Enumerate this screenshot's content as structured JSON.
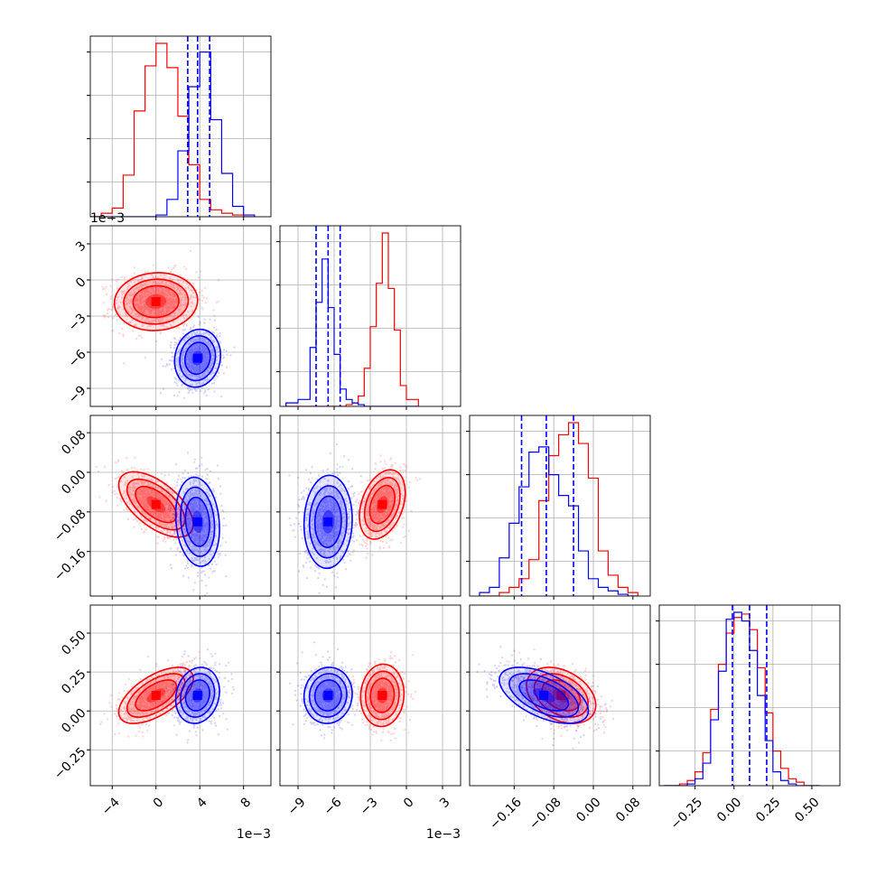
{
  "chart_data": {
    "type": "corner",
    "offset_text": {
      "x0": "1e−3",
      "x1": "1e−3",
      "y1": "1e−3"
    },
    "colors": {
      "red": "#ff0000",
      "blue": "#0000ff",
      "grid": "#b0b0b0"
    },
    "params": [
      {
        "range": [
          -6.0,
          10.5
        ],
        "ticks": [
          -4,
          0,
          4,
          8
        ],
        "tick_labels": [
          "−4",
          "0",
          "4",
          "8"
        ],
        "scale_note": "1e-3"
      },
      {
        "range": [
          -10.5,
          4.5
        ],
        "ticks": [
          -9,
          -6,
          -3,
          0,
          3
        ],
        "tick_labels": [
          "−9",
          "−6",
          "−3",
          "0",
          "3"
        ],
        "scale_note": "1e-3"
      },
      {
        "range": [
          -0.25,
          0.115
        ],
        "ticks": [
          -0.16,
          -0.08,
          0.0,
          0.08
        ],
        "tick_labels": [
          "−0.16",
          "−0.08",
          "0.00",
          "0.08"
        ]
      },
      {
        "range": [
          -0.48,
          0.68
        ],
        "ticks": [
          -0.25,
          0.0,
          0.25,
          0.5
        ],
        "tick_labels": [
          "−0.25",
          "0.00",
          "0.25",
          "0.50"
        ]
      }
    ],
    "quantiles_blue": [
      [
        2.9,
        3.8,
        4.9
      ],
      [
        -7.5,
        -6.5,
        -5.5
      ],
      [
        -0.145,
        -0.095,
        -0.04
      ],
      [
        -0.01,
        0.1,
        0.21
      ]
    ],
    "histograms": [
      {
        "param": 0,
        "bins": [
          -6.0,
          -5.0,
          -4.0,
          -3.0,
          -2.0,
          -1.0,
          0.0,
          1.0,
          2.0,
          3.0,
          4.0,
          5.0,
          6.0,
          7.0,
          8.0,
          9.0
        ],
        "red": [
          0.0,
          0.02,
          0.05,
          0.24,
          0.61,
          0.87,
          1.0,
          0.86,
          0.58,
          0.3,
          0.1,
          0.04,
          0.02,
          0.01,
          0.0
        ],
        "blue": [
          0.0,
          0.0,
          0.0,
          0.0,
          0.0,
          0.0,
          0.01,
          0.1,
          0.38,
          0.75,
          0.95,
          0.56,
          0.25,
          0.06,
          0.01
        ]
      },
      {
        "param": 1,
        "bins": [
          -10.0,
          -9.0,
          -8.0,
          -7.5,
          -7.0,
          -6.5,
          -6.0,
          -5.5,
          -5.0,
          -4.5,
          -4.0,
          -3.5,
          -3.0,
          -2.5,
          -2.0,
          -1.5,
          -1.0,
          -0.5,
          0.0,
          1.0
        ],
        "red": [
          0.0,
          0.0,
          0.0,
          0.0,
          0.0,
          0.0,
          0.0,
          0.0,
          0.01,
          0.02,
          0.06,
          0.22,
          0.46,
          0.71,
          1.0,
          0.68,
          0.44,
          0.12,
          0.04
        ],
        "blue": [
          0.02,
          0.04,
          0.34,
          0.6,
          0.85,
          0.57,
          0.3,
          0.1,
          0.04,
          0.02,
          0.01,
          0.0,
          0.0,
          0.0,
          0.0,
          0.0,
          0.0,
          0.0,
          0.0
        ]
      },
      {
        "param": 2,
        "bins": [
          -0.23,
          -0.21,
          -0.19,
          -0.17,
          -0.15,
          -0.13,
          -0.11,
          -0.09,
          -0.07,
          -0.05,
          -0.03,
          -0.01,
          0.01,
          0.03,
          0.05,
          0.07,
          0.09
        ],
        "red": [
          0.0,
          0.0,
          0.02,
          0.05,
          0.1,
          0.21,
          0.55,
          0.81,
          0.93,
          1.0,
          0.88,
          0.68,
          0.26,
          0.12,
          0.05,
          0.02
        ],
        "blue": [
          0.02,
          0.05,
          0.22,
          0.42,
          0.63,
          0.83,
          0.86,
          0.7,
          0.58,
          0.52,
          0.26,
          0.1,
          0.05,
          0.03,
          0.01,
          0.0
        ]
      },
      {
        "param": 3,
        "bins": [
          -0.45,
          -0.4,
          -0.35,
          -0.3,
          -0.25,
          -0.2,
          -0.15,
          -0.1,
          -0.05,
          0.0,
          0.05,
          0.1,
          0.15,
          0.2,
          0.25,
          0.3,
          0.35,
          0.4,
          0.45,
          0.5,
          0.55
        ],
        "red": [
          0.0,
          0.0,
          0.01,
          0.03,
          0.08,
          0.19,
          0.44,
          0.7,
          0.88,
          0.97,
          0.99,
          0.9,
          0.68,
          0.42,
          0.2,
          0.1,
          0.04,
          0.02,
          0.0,
          0.0
        ],
        "blue": [
          0.0,
          0.0,
          0.0,
          0.01,
          0.04,
          0.13,
          0.38,
          0.66,
          0.96,
          1.0,
          0.95,
          0.78,
          0.52,
          0.26,
          0.08,
          0.03,
          0.01,
          0.0,
          0.0,
          0.0
        ]
      }
    ],
    "blobs": [
      {
        "row": 1,
        "col": 0,
        "red": {
          "mean": [
            0.0,
            -1.8
          ],
          "sd": [
            1.9,
            1.2
          ],
          "rho": 0.05
        },
        "blue": {
          "mean": [
            3.8,
            -6.5
          ],
          "sd": [
            1.05,
            1.2
          ],
          "rho": 0.1
        }
      },
      {
        "row": 2,
        "col": 0,
        "red": {
          "mean": [
            0.0,
            -0.065
          ],
          "sd": [
            1.7,
            0.033
          ],
          "rho": -0.6
        },
        "blue": {
          "mean": [
            3.8,
            -0.1
          ],
          "sd": [
            1.0,
            0.045
          ],
          "rho": -0.15
        }
      },
      {
        "row": 2,
        "col": 1,
        "red": {
          "mean": [
            -2.0,
            -0.065
          ],
          "sd": [
            0.95,
            0.035
          ],
          "rho": 0.35
        },
        "blue": {
          "mean": [
            -6.5,
            -0.1
          ],
          "sd": [
            1.0,
            0.047
          ],
          "rho": 0.05
        }
      },
      {
        "row": 3,
        "col": 0,
        "red": {
          "mean": [
            0.0,
            0.1
          ],
          "sd": [
            1.7,
            0.09
          ],
          "rho": 0.6
        },
        "blue": {
          "mean": [
            3.8,
            0.1
          ],
          "sd": [
            1.0,
            0.09
          ],
          "rho": 0.15
        }
      },
      {
        "row": 3,
        "col": 1,
        "red": {
          "mean": [
            -2.0,
            0.1
          ],
          "sd": [
            0.9,
            0.1
          ],
          "rho": 0.05
        },
        "blue": {
          "mean": [
            -6.5,
            0.1
          ],
          "sd": [
            1.0,
            0.09
          ],
          "rho": 0.05
        }
      },
      {
        "row": 3,
        "col": 2,
        "red": {
          "mean": [
            -0.065,
            0.1
          ],
          "sd": [
            0.035,
            0.09
          ],
          "rho": -0.35
        },
        "blue": {
          "mean": [
            -0.1,
            0.1
          ],
          "sd": [
            0.045,
            0.09
          ],
          "rho": -0.55
        }
      }
    ]
  }
}
